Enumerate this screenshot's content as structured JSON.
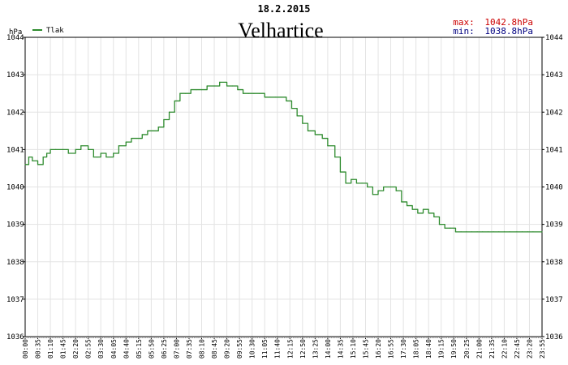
{
  "chart_data": {
    "type": "line",
    "date": "18.2.2015",
    "title": "Velhartice",
    "ylabel": "hPa",
    "ylim": [
      1036,
      1044
    ],
    "yticks": [
      1036,
      1037,
      1038,
      1039,
      1040,
      1041,
      1042,
      1043,
      1044
    ],
    "xlim": [
      "00:00",
      "23:55"
    ],
    "xticks": [
      "00:00",
      "00:35",
      "01:10",
      "01:45",
      "02:20",
      "02:55",
      "03:30",
      "04:05",
      "04:40",
      "05:15",
      "05:50",
      "06:25",
      "07:00",
      "07:35",
      "08:10",
      "08:45",
      "09:20",
      "09:55",
      "10:30",
      "11:05",
      "11:40",
      "12:15",
      "12:50",
      "13:25",
      "14:00",
      "14:35",
      "15:10",
      "15:45",
      "16:20",
      "16:55",
      "17:30",
      "18:05",
      "18:40",
      "19:15",
      "19:50",
      "20:25",
      "21:00",
      "21:35",
      "22:10",
      "22:45",
      "23:20",
      "23:55"
    ],
    "grid": true,
    "legend_placement": "top-left",
    "max_label": "max:",
    "max_value": "1042.8hPa",
    "min_label": "min:",
    "min_value": "1038.8hPa",
    "colors": {
      "line": "#2e8b2e",
      "max": "#cc0000",
      "min": "#000080",
      "grid": "#e3e3e3"
    },
    "series": [
      {
        "name": "Tlak",
        "x": [
          "00:00",
          "00:10",
          "00:20",
          "00:35",
          "00:50",
          "01:00",
          "01:10",
          "01:25",
          "01:45",
          "02:00",
          "02:20",
          "02:35",
          "02:55",
          "03:10",
          "03:20",
          "03:30",
          "03:45",
          "04:05",
          "04:20",
          "04:40",
          "04:55",
          "05:10",
          "05:25",
          "05:40",
          "05:55",
          "06:10",
          "06:25",
          "06:40",
          "06:55",
          "07:10",
          "07:25",
          "07:40",
          "07:55",
          "08:10",
          "08:25",
          "08:45",
          "09:00",
          "09:20",
          "09:35",
          "09:50",
          "10:05",
          "10:20",
          "10:35",
          "10:50",
          "11:05",
          "11:20",
          "11:35",
          "11:50",
          "12:05",
          "12:20",
          "12:35",
          "12:50",
          "13:05",
          "13:25",
          "13:45",
          "14:00",
          "14:20",
          "14:35",
          "14:50",
          "15:05",
          "15:20",
          "15:35",
          "15:50",
          "16:05",
          "16:20",
          "16:35",
          "16:55",
          "17:10",
          "17:25",
          "17:40",
          "17:55",
          "18:10",
          "18:25",
          "18:40",
          "18:55",
          "19:10",
          "19:25",
          "19:40",
          "19:55",
          "20:10",
          "20:25",
          "20:40",
          "20:55",
          "21:10",
          "21:25",
          "21:40",
          "21:55",
          "22:10",
          "22:25",
          "22:45",
          "23:00",
          "23:15",
          "23:30",
          "23:55"
        ],
        "values": [
          1040.6,
          1040.8,
          1040.7,
          1040.6,
          1040.8,
          1040.9,
          1041.0,
          1041.0,
          1041.0,
          1040.9,
          1041.0,
          1041.1,
          1041.0,
          1040.8,
          1040.8,
          1040.9,
          1040.8,
          1040.9,
          1041.1,
          1041.2,
          1041.3,
          1041.3,
          1041.4,
          1041.5,
          1041.5,
          1041.6,
          1041.8,
          1042.0,
          1042.3,
          1042.5,
          1042.5,
          1042.6,
          1042.6,
          1042.6,
          1042.7,
          1042.7,
          1042.8,
          1042.7,
          1042.7,
          1042.6,
          1042.5,
          1042.5,
          1042.5,
          1042.5,
          1042.4,
          1042.4,
          1042.4,
          1042.4,
          1042.3,
          1042.1,
          1041.9,
          1041.7,
          1041.5,
          1041.4,
          1041.3,
          1041.1,
          1040.8,
          1040.4,
          1040.1,
          1040.2,
          1040.1,
          1040.1,
          1040.0,
          1039.8,
          1039.9,
          1040.0,
          1040.0,
          1039.9,
          1039.6,
          1039.5,
          1039.4,
          1039.3,
          1039.4,
          1039.3,
          1039.2,
          1039.0,
          1038.9,
          1038.9,
          1038.8,
          1038.8,
          1038.8,
          1038.8,
          1038.8,
          1038.8,
          1038.8,
          1038.8,
          1038.8,
          1038.8,
          1038.8,
          1038.8,
          1038.8,
          1038.8,
          1038.8,
          1038.8
        ]
      }
    ]
  }
}
